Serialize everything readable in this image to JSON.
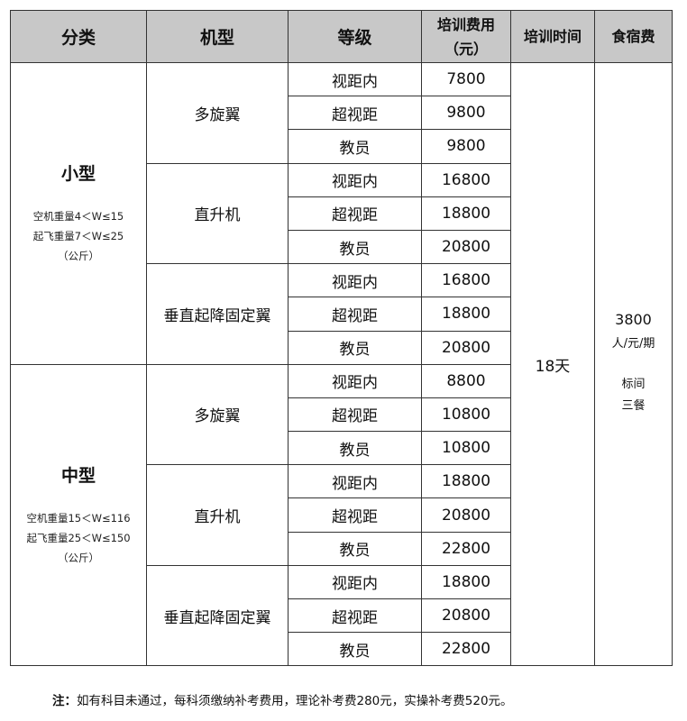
{
  "headers": [
    "分类",
    "机型",
    "等级",
    "培训费用\n（元）",
    "培训时间",
    "食宿费"
  ],
  "categories": [
    {
      "name": "小型",
      "lines": [
        "空机重量4＜W≤15",
        "起飞重量7＜W≤25",
        "（公斤）"
      ],
      "models": [
        {
          "name": "多旋翼",
          "levels": [
            {
              "level": "视距内",
              "fee": "7800"
            },
            {
              "level": "超视距",
              "fee": "9800"
            },
            {
              "level": "教员",
              "fee": "9800"
            }
          ]
        },
        {
          "name": "直升机",
          "levels": [
            {
              "level": "视距内",
              "fee": "16800"
            },
            {
              "level": "超视距",
              "fee": "18800"
            },
            {
              "level": "教员",
              "fee": "20800"
            }
          ]
        },
        {
          "name": "垂直起降固定翼",
          "levels": [
            {
              "level": "视距内",
              "fee": "16800"
            },
            {
              "level": "超视距",
              "fee": "18800"
            },
            {
              "level": "教员",
              "fee": "20800"
            }
          ]
        }
      ]
    },
    {
      "name": "中型",
      "lines": [
        "空机重量15＜W≤116",
        "起飞重量25＜W≤150",
        "（公斤）"
      ],
      "models": [
        {
          "name": "多旋翼",
          "levels": [
            {
              "level": "视距内",
              "fee": "8800"
            },
            {
              "level": "超视距",
              "fee": "10800"
            },
            {
              "level": "教员",
              "fee": "10800"
            }
          ]
        },
        {
          "name": "直升机",
          "levels": [
            {
              "level": "视距内",
              "fee": "18800"
            },
            {
              "level": "超视距",
              "fee": "20800"
            },
            {
              "level": "教员",
              "fee": "22800"
            }
          ]
        },
        {
          "name": "垂直起降固定翼",
          "levels": [
            {
              "level": "视距内",
              "fee": "18800"
            },
            {
              "level": "超视距",
              "fee": "20800"
            },
            {
              "level": "教员",
              "fee": "22800"
            }
          ]
        }
      ]
    }
  ],
  "training_time": "18天",
  "board": {
    "price": "3800",
    "unit": "人/元/期",
    "room": "标间",
    "meals": "三餐"
  },
  "note": {
    "label": "注：",
    "text": "如有科目未通过，每科须缴纳补考费用，理论补考费280元，实操补考费520元。"
  }
}
